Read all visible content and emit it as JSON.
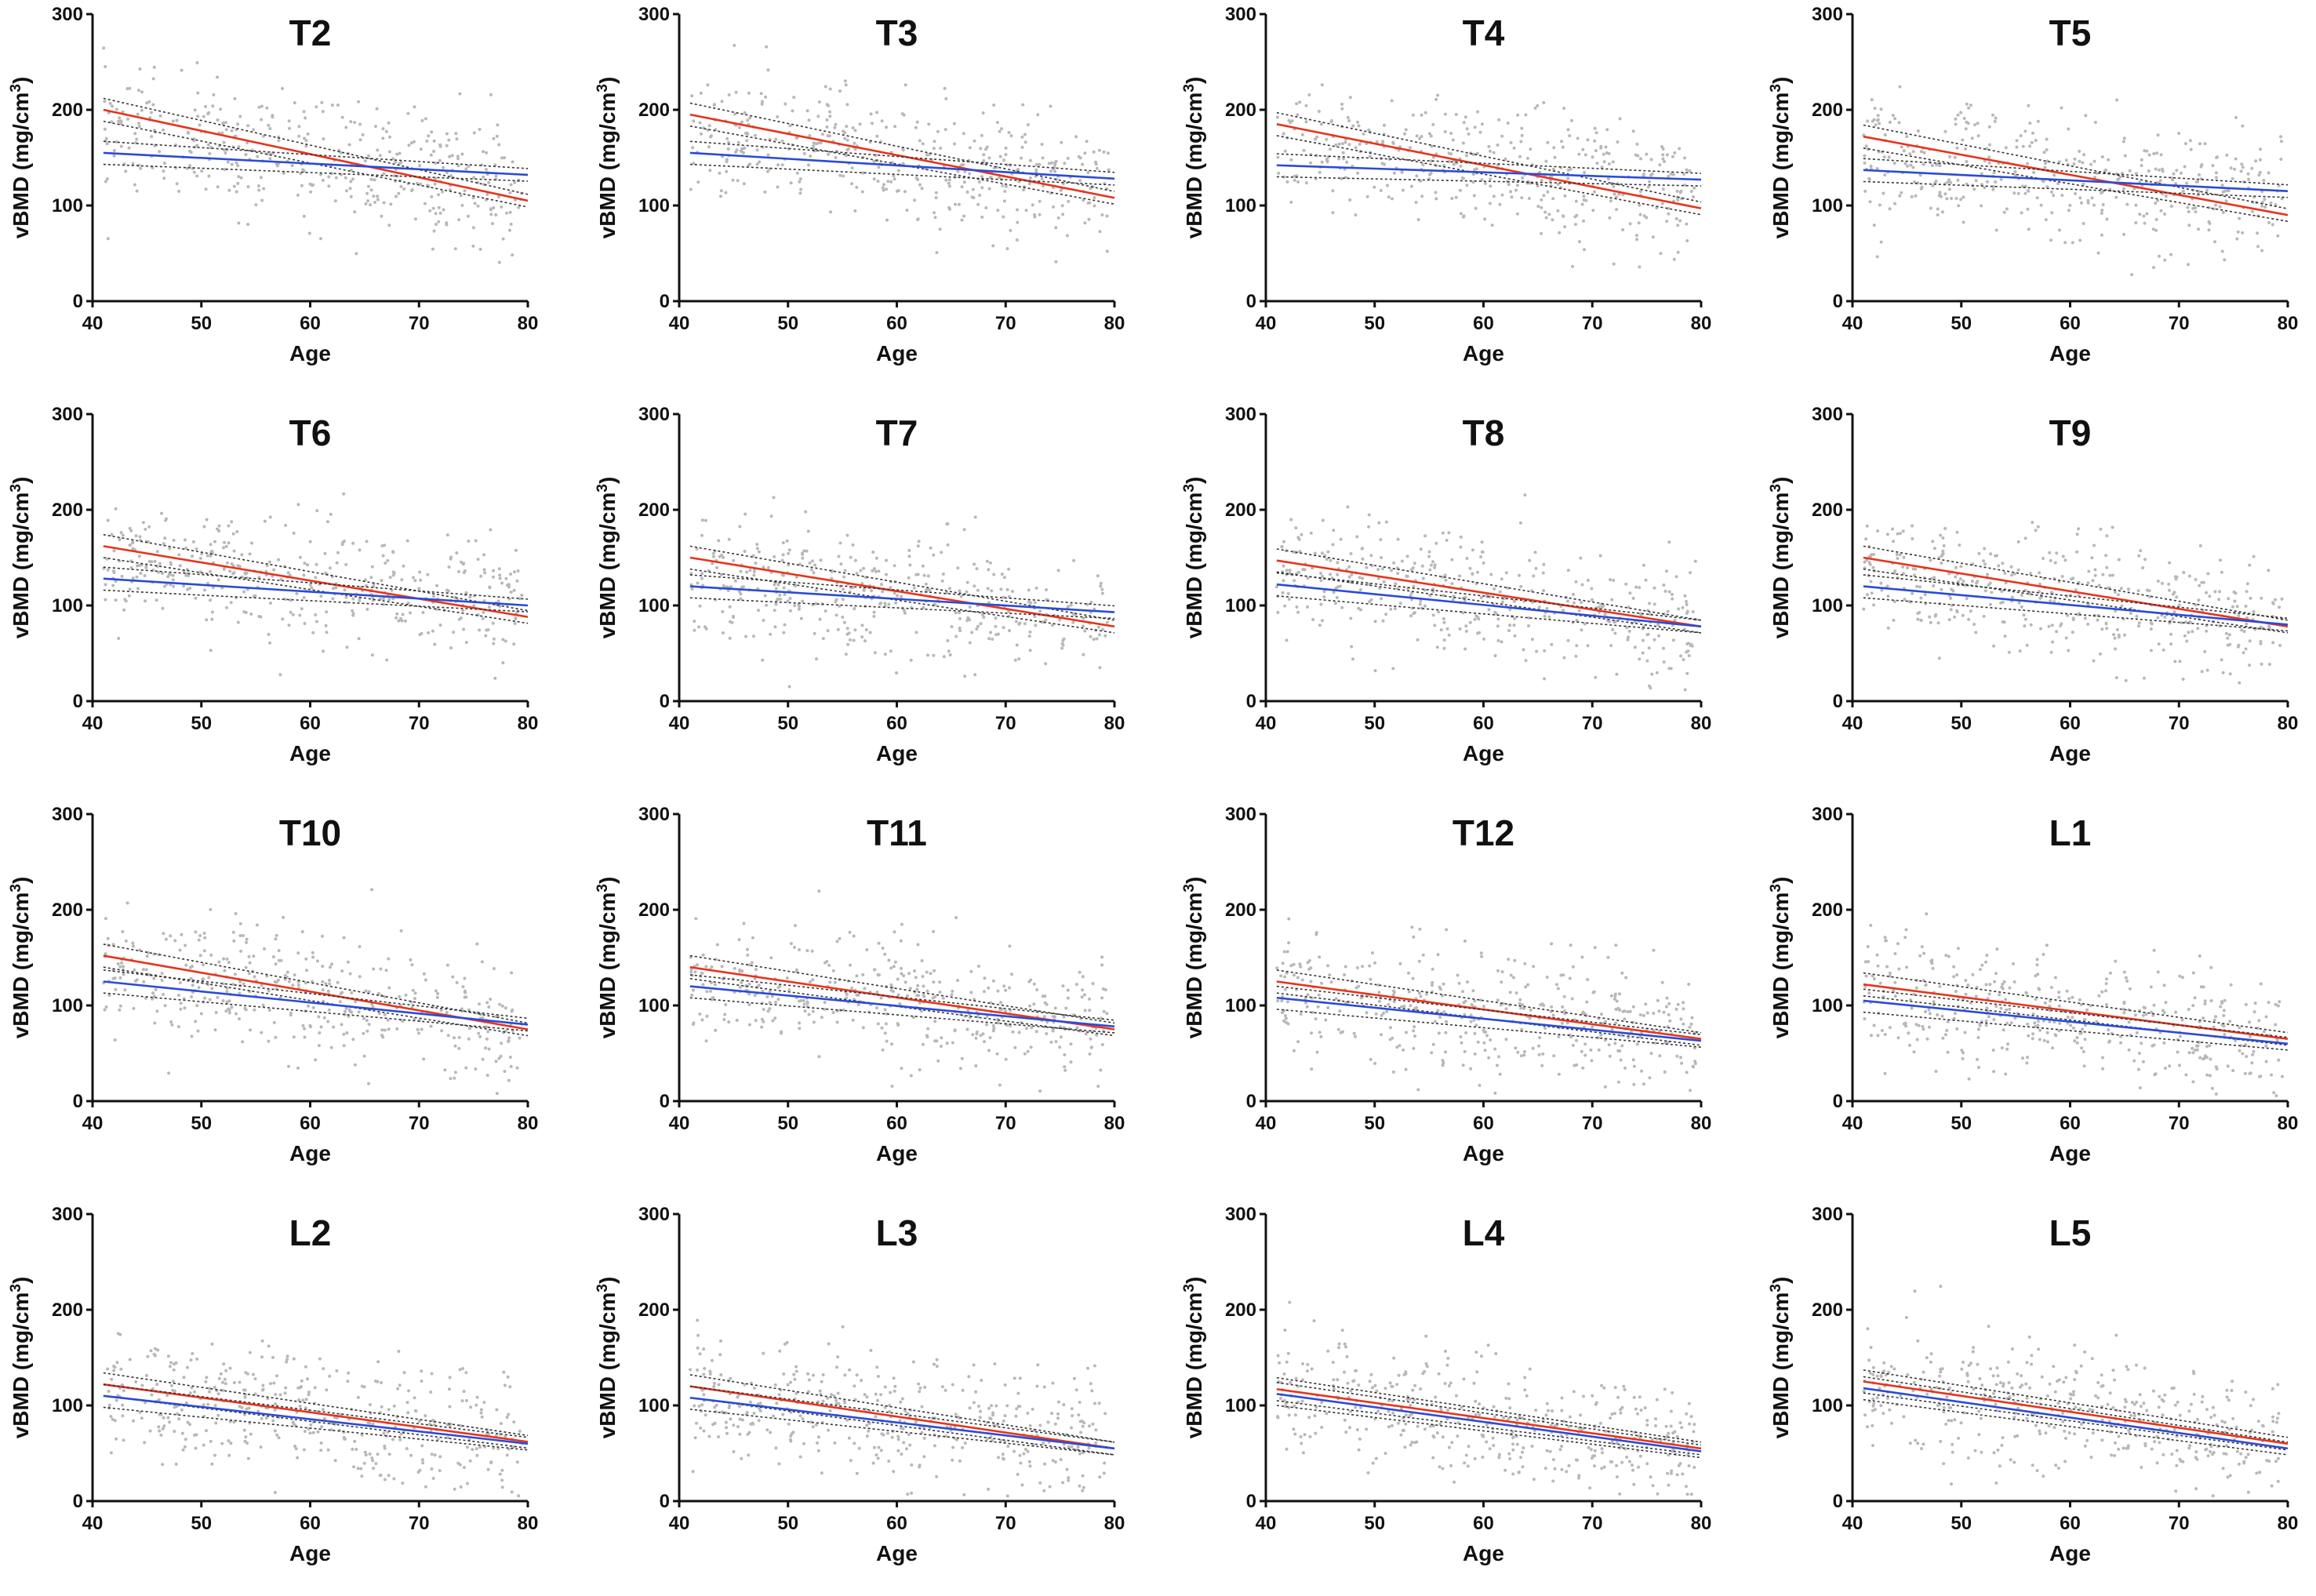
{
  "figure": {
    "colors": {
      "points": "#b8b8b8",
      "series_red": "#e8331c",
      "series_blue": "#2a4bd7",
      "ci_band": "#333333",
      "axis": "#111111"
    }
  },
  "chart_data": [
    {
      "type": "scatter",
      "title": "T2",
      "xlabel": "Age",
      "ylabel": "vBMD (mg/cm3)",
      "xlim": [
        40,
        80
      ],
      "ylim": [
        0,
        300
      ],
      "x_ticks": [
        40,
        50,
        60,
        70,
        80
      ],
      "y_ticks": [
        0,
        100,
        200,
        300
      ],
      "grid": false,
      "series": [
        {
          "values": [
            [
              41,
              200
            ],
            [
              80,
              105
            ]
          ]
        },
        {
          "values": [
            [
              41,
              155
            ],
            [
              80,
              132
            ]
          ]
        }
      ]
    },
    {
      "type": "scatter",
      "title": "T3",
      "xlabel": "Age",
      "ylabel": "vBMD (mg/cm3)",
      "xlim": [
        40,
        80
      ],
      "ylim": [
        0,
        300
      ],
      "x_ticks": [
        40,
        50,
        60,
        70,
        80
      ],
      "y_ticks": [
        0,
        100,
        200,
        300
      ],
      "grid": false,
      "series": [
        {
          "values": [
            [
              41,
              195
            ],
            [
              80,
              108
            ]
          ]
        },
        {
          "values": [
            [
              41,
              155
            ],
            [
              80,
              128
            ]
          ]
        }
      ]
    },
    {
      "type": "scatter",
      "title": "T4",
      "xlabel": "Age",
      "ylabel": "vBMD (mg/cm3)",
      "xlim": [
        40,
        80
      ],
      "ylim": [
        0,
        300
      ],
      "x_ticks": [
        40,
        50,
        60,
        70,
        80
      ],
      "y_ticks": [
        0,
        100,
        200,
        300
      ],
      "grid": false,
      "series": [
        {
          "values": [
            [
              41,
              185
            ],
            [
              80,
              97
            ]
          ]
        },
        {
          "values": [
            [
              41,
              142
            ],
            [
              80,
              127
            ]
          ]
        }
      ]
    },
    {
      "type": "scatter",
      "title": "T5",
      "xlabel": "Age",
      "ylabel": "vBMD (mg/cm3)",
      "xlim": [
        40,
        80
      ],
      "ylim": [
        0,
        300
      ],
      "x_ticks": [
        40,
        50,
        60,
        70,
        80
      ],
      "y_ticks": [
        0,
        100,
        200,
        300
      ],
      "grid": false,
      "series": [
        {
          "values": [
            [
              41,
              172
            ],
            [
              80,
              90
            ]
          ]
        },
        {
          "values": [
            [
              41,
              137
            ],
            [
              80,
              115
            ]
          ]
        }
      ]
    },
    {
      "type": "scatter",
      "title": "T6",
      "xlabel": "Age",
      "ylabel": "vBMD (mg/cm3)",
      "xlim": [
        40,
        80
      ],
      "ylim": [
        0,
        300
      ],
      "x_ticks": [
        40,
        50,
        60,
        70,
        80
      ],
      "y_ticks": [
        0,
        100,
        200,
        300
      ],
      "grid": false,
      "series": [
        {
          "values": [
            [
              41,
              162
            ],
            [
              80,
              88
            ]
          ]
        },
        {
          "values": [
            [
              41,
              128
            ],
            [
              80,
              100
            ]
          ]
        }
      ]
    },
    {
      "type": "scatter",
      "title": "T7",
      "xlabel": "Age",
      "ylabel": "vBMD (mg/cm3)",
      "xlim": [
        40,
        80
      ],
      "ylim": [
        0,
        300
      ],
      "x_ticks": [
        40,
        50,
        60,
        70,
        80
      ],
      "y_ticks": [
        0,
        100,
        200,
        300
      ],
      "grid": false,
      "series": [
        {
          "values": [
            [
              41,
              150
            ],
            [
              80,
              78
            ]
          ]
        },
        {
          "values": [
            [
              41,
              120
            ],
            [
              80,
              93
            ]
          ]
        }
      ]
    },
    {
      "type": "scatter",
      "title": "T8",
      "xlabel": "Age",
      "ylabel": "vBMD (mg/cm3)",
      "xlim": [
        40,
        80
      ],
      "ylim": [
        0,
        300
      ],
      "x_ticks": [
        40,
        50,
        60,
        70,
        80
      ],
      "y_ticks": [
        0,
        100,
        200,
        300
      ],
      "grid": false,
      "series": [
        {
          "values": [
            [
              41,
              147
            ],
            [
              80,
              78
            ]
          ]
        },
        {
          "values": [
            [
              41,
              122
            ],
            [
              80,
              78
            ]
          ]
        }
      ]
    },
    {
      "type": "scatter",
      "title": "T9",
      "xlabel": "Age",
      "ylabel": "vBMD (mg/cm3)",
      "xlim": [
        40,
        80
      ],
      "ylim": [
        0,
        300
      ],
      "x_ticks": [
        40,
        50,
        60,
        70,
        80
      ],
      "y_ticks": [
        0,
        100,
        200,
        300
      ],
      "grid": false,
      "series": [
        {
          "values": [
            [
              41,
              150
            ],
            [
              80,
              78
            ]
          ]
        },
        {
          "values": [
            [
              41,
              120
            ],
            [
              80,
              80
            ]
          ]
        }
      ]
    },
    {
      "type": "scatter",
      "title": "T10",
      "xlabel": "Age",
      "ylabel": "vBMD (mg/cm3)",
      "xlim": [
        40,
        80
      ],
      "ylim": [
        0,
        300
      ],
      "x_ticks": [
        40,
        50,
        60,
        70,
        80
      ],
      "y_ticks": [
        0,
        100,
        200,
        300
      ],
      "grid": false,
      "series": [
        {
          "values": [
            [
              41,
              152
            ],
            [
              80,
              75
            ]
          ]
        },
        {
          "values": [
            [
              41,
              125
            ],
            [
              80,
              80
            ]
          ]
        }
      ]
    },
    {
      "type": "scatter",
      "title": "T11",
      "xlabel": "Age",
      "ylabel": "vBMD (mg/cm3)",
      "xlim": [
        40,
        80
      ],
      "ylim": [
        0,
        300
      ],
      "x_ticks": [
        40,
        50,
        60,
        70,
        80
      ],
      "y_ticks": [
        0,
        100,
        200,
        300
      ],
      "grid": false,
      "series": [
        {
          "values": [
            [
              41,
              140
            ],
            [
              80,
              75
            ]
          ]
        },
        {
          "values": [
            [
              41,
              120
            ],
            [
              80,
              78
            ]
          ]
        }
      ]
    },
    {
      "type": "scatter",
      "title": "T12",
      "xlabel": "Age",
      "ylabel": "vBMD (mg/cm3)",
      "xlim": [
        40,
        80
      ],
      "ylim": [
        0,
        300
      ],
      "x_ticks": [
        40,
        50,
        60,
        70,
        80
      ],
      "y_ticks": [
        0,
        100,
        200,
        300
      ],
      "grid": false,
      "series": [
        {
          "values": [
            [
              41,
              125
            ],
            [
              80,
              65
            ]
          ]
        },
        {
          "values": [
            [
              41,
              108
            ],
            [
              80,
              63
            ]
          ]
        }
      ]
    },
    {
      "type": "scatter",
      "title": "L1",
      "xlabel": "Age",
      "ylabel": "vBMD (mg/cm3)",
      "xlim": [
        40,
        80
      ],
      "ylim": [
        0,
        300
      ],
      "x_ticks": [
        40,
        50,
        60,
        70,
        80
      ],
      "y_ticks": [
        0,
        100,
        200,
        300
      ],
      "grid": false,
      "series": [
        {
          "values": [
            [
              41,
              122
            ],
            [
              80,
              65
            ]
          ]
        },
        {
          "values": [
            [
              41,
              105
            ],
            [
              80,
              60
            ]
          ]
        }
      ]
    },
    {
      "type": "scatter",
      "title": "L2",
      "xlabel": "Age",
      "ylabel": "vBMD (mg/cm3)",
      "xlim": [
        40,
        80
      ],
      "ylim": [
        0,
        300
      ],
      "x_ticks": [
        40,
        50,
        60,
        70,
        80
      ],
      "y_ticks": [
        0,
        100,
        200,
        300
      ],
      "grid": false,
      "series": [
        {
          "values": [
            [
              41,
              122
            ],
            [
              80,
              62
            ]
          ]
        },
        {
          "values": [
            [
              41,
              110
            ],
            [
              80,
              60
            ]
          ]
        }
      ]
    },
    {
      "type": "scatter",
      "title": "L3",
      "xlabel": "Age",
      "ylabel": "vBMD (mg/cm3)",
      "xlim": [
        40,
        80
      ],
      "ylim": [
        0,
        300
      ],
      "x_ticks": [
        40,
        50,
        60,
        70,
        80
      ],
      "y_ticks": [
        0,
        100,
        200,
        300
      ],
      "grid": false,
      "series": [
        {
          "values": [
            [
              41,
              120
            ],
            [
              80,
              55
            ]
          ]
        },
        {
          "values": [
            [
              41,
              108
            ],
            [
              80,
              55
            ]
          ]
        }
      ]
    },
    {
      "type": "scatter",
      "title": "L4",
      "xlabel": "Age",
      "ylabel": "vBMD (mg/cm3)",
      "xlim": [
        40,
        80
      ],
      "ylim": [
        0,
        300
      ],
      "x_ticks": [
        40,
        50,
        60,
        70,
        80
      ],
      "y_ticks": [
        0,
        100,
        200,
        300
      ],
      "grid": false,
      "series": [
        {
          "values": [
            [
              41,
              117
            ],
            [
              80,
              55
            ]
          ]
        },
        {
          "values": [
            [
              41,
              112
            ],
            [
              80,
              52
            ]
          ]
        }
      ]
    },
    {
      "type": "scatter",
      "title": "L5",
      "xlabel": "Age",
      "ylabel": "vBMD (mg/cm3)",
      "xlim": [
        40,
        80
      ],
      "ylim": [
        0,
        300
      ],
      "x_ticks": [
        40,
        50,
        60,
        70,
        80
      ],
      "y_ticks": [
        0,
        100,
        200,
        300
      ],
      "grid": false,
      "series": [
        {
          "values": [
            [
              41,
              125
            ],
            [
              80,
              60
            ]
          ]
        },
        {
          "values": [
            [
              41,
              118
            ],
            [
              80,
              55
            ]
          ]
        }
      ]
    }
  ]
}
